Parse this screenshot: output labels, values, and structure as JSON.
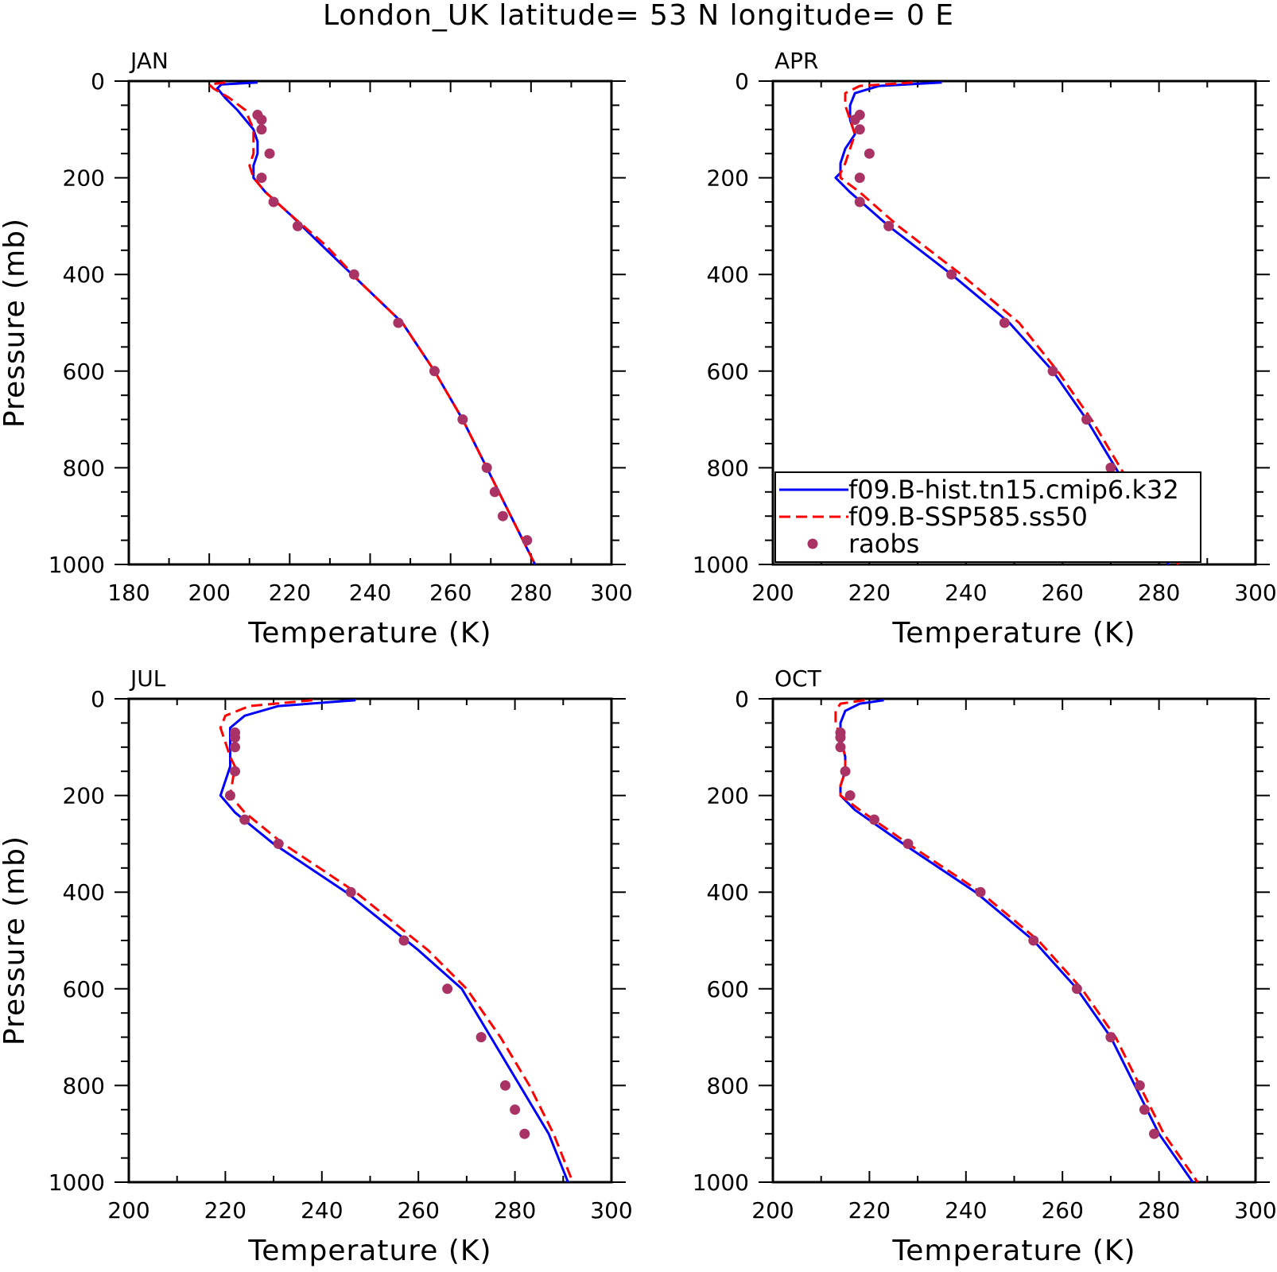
{
  "figure": {
    "title": "London_UK  latitude= 53 N longitude= 0 E"
  },
  "colors": {
    "model_hist": "#0000ff",
    "model_ssp585": "#ff0000",
    "raobs": "#aa3366",
    "axes": "#000000"
  },
  "legend": {
    "panel": "APR",
    "placement": "bottom-right",
    "entries": [
      {
        "label": "f09.B-hist.tn15.cmip6.k32",
        "style": "solid",
        "color_key": "model_hist"
      },
      {
        "label": "f09.B-SSP585.ss50",
        "style": "dashed",
        "color_key": "model_ssp585"
      },
      {
        "label": "raobs",
        "style": "marker",
        "color_key": "raobs"
      }
    ]
  },
  "chart_data": [
    {
      "type": "line",
      "panel_label": "JAN",
      "xlabel": "Temperature (K)",
      "ylabel": "Pressure (mb)",
      "xlim": [
        180,
        300
      ],
      "ylim": [
        1000,
        0
      ],
      "xticks": [
        180,
        200,
        220,
        240,
        260,
        280,
        300
      ],
      "yticks": [
        0,
        200,
        400,
        600,
        800,
        1000
      ],
      "grid": false,
      "series": [
        {
          "name": "f09.B-hist.tn15.cmip6.k32",
          "x": [
            212,
            203,
            202,
            204,
            207,
            211,
            212,
            212,
            211,
            211,
            214,
            220,
            228,
            238,
            248,
            256,
            263,
            269,
            275,
            281
          ],
          "y": [
            3,
            7,
            15,
            35,
            60,
            100,
            125,
            150,
            175,
            200,
            230,
            275,
            340,
            420,
            500,
            600,
            700,
            800,
            900,
            1000
          ]
        },
        {
          "name": "f09.B-SSP585.ss50",
          "x": [
            204,
            200,
            201,
            205,
            209,
            211,
            211,
            211,
            210,
            211,
            214,
            220,
            229,
            238,
            248,
            256,
            263,
            269,
            275,
            281
          ],
          "y": [
            3,
            7,
            15,
            35,
            60,
            100,
            125,
            150,
            175,
            200,
            230,
            275,
            340,
            420,
            500,
            600,
            700,
            800,
            900,
            1000
          ]
        },
        {
          "name": "raobs",
          "x": [
            212,
            213,
            213,
            215,
            213,
            216,
            222,
            236,
            247,
            256,
            263,
            269,
            271,
            273,
            279
          ],
          "y": [
            70,
            80,
            100,
            150,
            200,
            250,
            300,
            400,
            500,
            600,
            700,
            800,
            850,
            900,
            950
          ]
        }
      ]
    },
    {
      "type": "line",
      "panel_label": "APR",
      "xlabel": "Temperature (K)",
      "ylabel": "",
      "xlim": [
        200,
        300
      ],
      "ylim": [
        1000,
        0
      ],
      "xticks": [
        200,
        220,
        240,
        260,
        280,
        300
      ],
      "yticks": [
        0,
        200,
        400,
        600,
        800,
        1000
      ],
      "grid": false,
      "series": [
        {
          "name": "f09.B-hist.tn15.cmip6.k32",
          "x": [
            235,
            222,
            217,
            216,
            216,
            217,
            215,
            214,
            214,
            213,
            216,
            224,
            237,
            249,
            258,
            265,
            271,
            277,
            282
          ],
          "y": [
            3,
            10,
            25,
            50,
            80,
            110,
            140,
            170,
            190,
            200,
            230,
            300,
            400,
            500,
            600,
            700,
            800,
            900,
            1000
          ]
        },
        {
          "name": "f09.B-SSP585.ss50",
          "x": [
            229,
            218,
            215,
            215,
            216,
            217,
            216,
            215,
            214,
            214,
            218,
            226,
            239,
            251,
            259,
            266,
            272,
            278,
            284
          ],
          "y": [
            3,
            10,
            25,
            50,
            80,
            110,
            140,
            170,
            190,
            200,
            230,
            300,
            400,
            500,
            600,
            700,
            800,
            900,
            1000
          ]
        },
        {
          "name": "raobs",
          "x": [
            218,
            217,
            218,
            220,
            218,
            218,
            224,
            237,
            248,
            258,
            265,
            270,
            273,
            275
          ],
          "y": [
            70,
            80,
            100,
            150,
            200,
            250,
            300,
            400,
            500,
            600,
            700,
            800,
            850,
            900
          ]
        }
      ]
    },
    {
      "type": "line",
      "panel_label": "JUL",
      "xlabel": "Temperature (K)",
      "ylabel": "Pressure (mb)",
      "xlim": [
        200,
        300
      ],
      "ylim": [
        1000,
        0
      ],
      "xticks": [
        200,
        220,
        240,
        260,
        280,
        300
      ],
      "yticks": [
        0,
        200,
        400,
        600,
        800,
        1000
      ],
      "grid": false,
      "series": [
        {
          "name": "f09.B-hist.tn15.cmip6.k32",
          "x": [
            247,
            231,
            224,
            221,
            221,
            221,
            221,
            219,
            222,
            230,
            245,
            260,
            269,
            275,
            281,
            287,
            291
          ],
          "y": [
            3,
            15,
            35,
            60,
            90,
            120,
            140,
            200,
            235,
            300,
            400,
            520,
            600,
            700,
            800,
            900,
            1000
          ]
        },
        {
          "name": "f09.B-SSP585.ss50",
          "x": [
            238,
            225,
            220,
            219,
            220,
            221,
            222,
            221,
            224,
            232,
            247,
            262,
            270,
            277,
            283,
            288,
            292
          ],
          "y": [
            3,
            15,
            35,
            60,
            90,
            120,
            140,
            200,
            235,
            300,
            400,
            520,
            600,
            700,
            800,
            900,
            1000
          ]
        },
        {
          "name": "raobs",
          "x": [
            222,
            222,
            222,
            222,
            221,
            224,
            231,
            246,
            257,
            266,
            273,
            278,
            280,
            282
          ],
          "y": [
            70,
            80,
            100,
            150,
            200,
            250,
            300,
            400,
            500,
            600,
            700,
            800,
            850,
            900
          ]
        }
      ]
    },
    {
      "type": "line",
      "panel_label": "OCT",
      "xlabel": "Temperature (K)",
      "ylabel": "",
      "xlim": [
        200,
        300
      ],
      "ylim": [
        1000,
        0
      ],
      "xticks": [
        200,
        220,
        240,
        260,
        280,
        300
      ],
      "yticks": [
        0,
        200,
        400,
        600,
        800,
        1000
      ],
      "grid": false,
      "series": [
        {
          "name": "f09.B-hist.tn15.cmip6.k32",
          "x": [
            223,
            218,
            215,
            214,
            214,
            215,
            215,
            214,
            214,
            217,
            227,
            242,
            254,
            263,
            270,
            275,
            280,
            287
          ],
          "y": [
            3,
            10,
            25,
            50,
            80,
            120,
            150,
            180,
            200,
            230,
            300,
            400,
            500,
            600,
            700,
            800,
            900,
            1000
          ]
        },
        {
          "name": "f09.B-SSP585.ss50",
          "x": [
            219,
            214,
            213,
            213,
            214,
            215,
            215,
            214,
            214,
            218,
            228,
            243,
            255,
            264,
            271,
            276,
            281,
            288
          ],
          "y": [
            3,
            10,
            25,
            50,
            80,
            120,
            150,
            180,
            200,
            230,
            300,
            400,
            500,
            600,
            700,
            800,
            900,
            1000
          ]
        },
        {
          "name": "raobs",
          "x": [
            214,
            214,
            214,
            215,
            216,
            221,
            228,
            243,
            254,
            263,
            270,
            276,
            277,
            279
          ],
          "y": [
            70,
            80,
            100,
            150,
            200,
            250,
            300,
            400,
            500,
            600,
            700,
            800,
            850,
            900
          ]
        }
      ]
    }
  ]
}
